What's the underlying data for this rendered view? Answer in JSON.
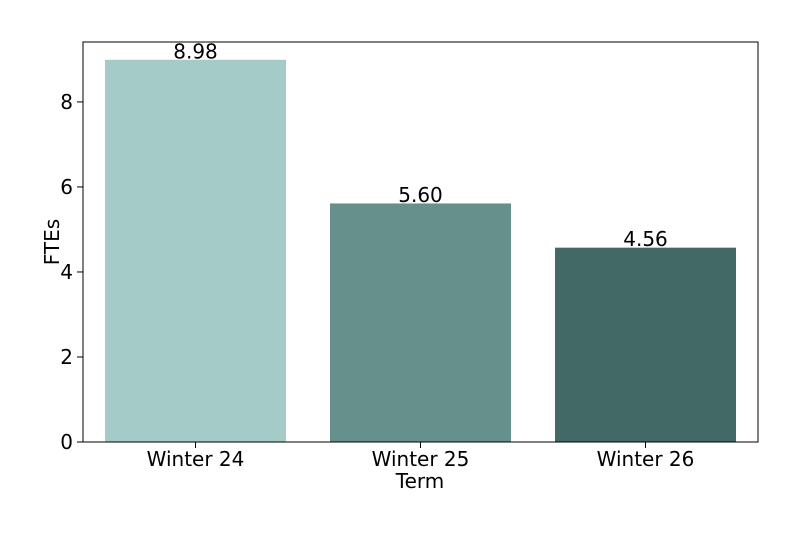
{
  "chart_data": {
    "type": "bar",
    "x_label": "Term",
    "y_label": "FTEs",
    "categories": [
      "Winter 24",
      "Winter 25",
      "Winter 26"
    ],
    "values": [
      8.98,
      5.6,
      4.56
    ],
    "value_labels": [
      "8.98",
      "5.60",
      "4.56"
    ],
    "colors": [
      "#a4cbc7",
      "#66908b",
      "#426966"
    ],
    "ylim": [
      0,
      9.41
    ],
    "yticks": [
      0,
      2,
      4,
      6,
      8
    ],
    "grid": false
  }
}
